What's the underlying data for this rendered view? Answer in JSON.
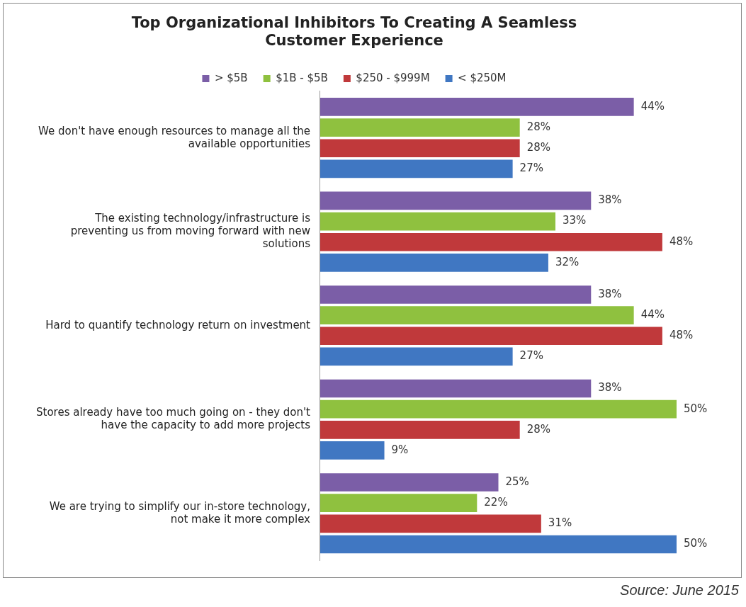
{
  "chart_data": {
    "type": "bar",
    "orientation": "horizontal",
    "title": "Top Organizational Inhibitors To Creating A Seamless Customer Experience",
    "categories": [
      "We don't have enough resources to manage all the available opportunities",
      "The existing technology/infrastructure is preventing us from moving forward with new solutions",
      "Hard to quantify technology return on investment",
      "Stores already have too much going on - they don't have the capacity to add more projects",
      "We are trying to simplify our in-store technology, not make it more complex"
    ],
    "series": [
      {
        "name": "> $5B",
        "color": "#7b5ea7",
        "values": [
          44,
          38,
          38,
          38,
          25
        ],
        "value_labels": [
          "44%",
          "38%",
          "38%",
          "38%",
          "25%"
        ]
      },
      {
        "name": "$1B - $5B",
        "color": "#8fc13f",
        "values": [
          28,
          33,
          44,
          50,
          22
        ],
        "value_labels": [
          "28%",
          "33%",
          "44%",
          "50%",
          "22%"
        ]
      },
      {
        "name": "$250 - $999M",
        "color": "#c0393b",
        "values": [
          28,
          48,
          48,
          28,
          31
        ],
        "value_labels": [
          "28%",
          "48%",
          "48%",
          "28%",
          "31%"
        ]
      },
      {
        "name": "< $250M",
        "color": "#4077c2",
        "values": [
          27,
          32,
          27,
          9,
          50
        ],
        "value_labels": [
          "27%",
          "32%",
          "27%",
          "9%",
          "50%"
        ]
      }
    ],
    "legend": "top",
    "grid": false,
    "tick_labels": "y",
    "annotations": [
      "Source: June 2015"
    ]
  }
}
